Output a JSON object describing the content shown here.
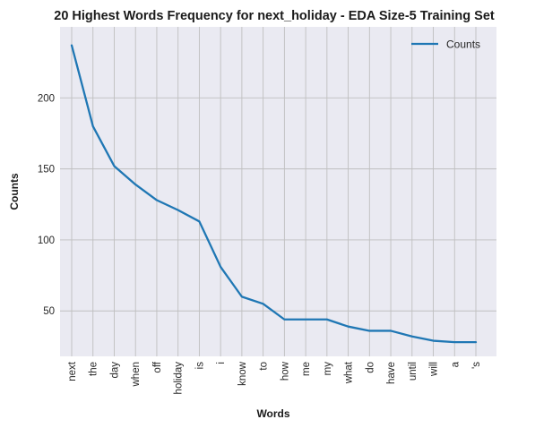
{
  "chart_data": {
    "type": "line",
    "title": "20 Highest Words Frequency for next_holiday - EDA Size-5 Training Set",
    "xlabel": "Words",
    "ylabel": "Counts",
    "categories": [
      "next",
      "the",
      "day",
      "when",
      "off",
      "holiday",
      "is",
      "i",
      "know",
      "to",
      "how",
      "me",
      "my",
      "what",
      "do",
      "have",
      "until",
      "will",
      "a",
      "'s"
    ],
    "series": [
      {
        "name": "Counts",
        "color": "#1f77b4",
        "values": [
          237,
          180,
          152,
          139,
          128,
          121,
          113,
          81,
          60,
          55,
          44,
          44,
          44,
          39,
          36,
          36,
          32,
          29,
          28,
          28
        ]
      }
    ],
    "yticks": [
      50,
      100,
      150,
      200
    ],
    "ylim": [
      18,
      250
    ],
    "grid": true,
    "legend_position": "top-right",
    "background": "#eaeaf2"
  }
}
